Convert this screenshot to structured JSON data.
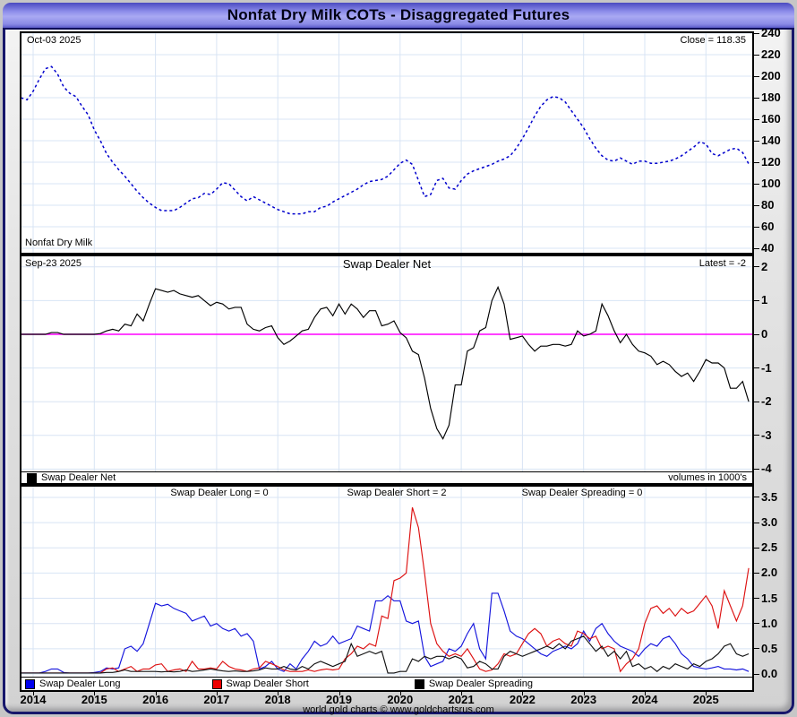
{
  "window": {
    "title": "Nonfat Dry Milk COTs - Disaggregated Futures"
  },
  "top_panel": {
    "date_label": "Oct-03 2025",
    "close_label": "Close = 118.35",
    "series_label": "Nonfat Dry Milk"
  },
  "middle_panel": {
    "date_label": "Sep-23 2025",
    "title": "Swap Dealer Net",
    "latest_label": "Latest = -2",
    "legend_label": "Swap Dealer Net",
    "volumes_label": "volumes in 1000's"
  },
  "bottom_panel": {
    "long_header": "Swap Dealer Long = 0",
    "short_header": "Swap Dealer Short = 2",
    "spreading_header": "Swap Dealer Spreading = 0",
    "legend": [
      {
        "label": "Swap Dealer Long",
        "color": "#0000ee"
      },
      {
        "label": "Swap Dealer Short",
        "color": "#ee0000"
      },
      {
        "label": "Swap Dealer Spreading",
        "color": "#000000"
      }
    ]
  },
  "x_axis": {
    "years": [
      "2014",
      "2015",
      "2016",
      "2017",
      "2018",
      "2019",
      "2020",
      "2021",
      "2022",
      "2023",
      "2024",
      "2025"
    ]
  },
  "footer": "world gold charts © www.goldchartsrus.com",
  "colors": {
    "grid": "#d8e4f4",
    "zero_line": "#ff00ff",
    "price_line": "#0000cd",
    "net_line": "#000000",
    "long_line": "#1515dd",
    "short_line": "#dd1111",
    "spreading_line": "#111111"
  },
  "chart_data": [
    {
      "type": "line",
      "panel": "price",
      "title": "Nonfat Dry Milk",
      "xlabel": "",
      "ylabel": "",
      "xlim": [
        2013.8,
        2025.8
      ],
      "ylim": [
        40,
        240
      ],
      "y_ticks": [
        "240",
        "220",
        "200",
        "180",
        "160",
        "140",
        "120",
        "100",
        "80",
        "60",
        "40"
      ],
      "y_tick_values": [
        240,
        220,
        200,
        180,
        160,
        140,
        120,
        100,
        80,
        60,
        40
      ],
      "grid": true,
      "series": [
        {
          "name": "Nonfat Dry Milk",
          "color": "#0000cd",
          "style": "dashed",
          "x_start": 2013.8,
          "x_step": 0.1,
          "values": [
            180,
            178,
            186,
            197,
            207,
            209,
            202,
            190,
            184,
            181,
            172,
            164,
            150,
            140,
            128,
            120,
            113,
            107,
            100,
            93,
            87,
            82,
            78,
            75,
            75,
            75,
            78,
            82,
            86,
            87,
            91,
            90,
            95,
            101,
            100,
            94,
            88,
            84,
            88,
            85,
            82,
            79,
            76,
            74,
            72,
            72,
            72,
            74,
            74,
            78,
            79,
            83,
            86,
            89,
            92,
            95,
            99,
            102,
            103,
            104,
            107,
            113,
            119,
            122,
            118,
            103,
            88,
            90,
            103,
            105,
            96,
            95,
            103,
            109,
            112,
            114,
            116,
            118,
            121,
            123,
            126,
            133,
            142,
            152,
            163,
            172,
            178,
            181,
            180,
            176,
            168,
            160,
            152,
            142,
            133,
            126,
            122,
            121,
            124,
            121,
            118,
            121,
            121,
            119,
            119,
            120,
            121,
            123,
            126,
            130,
            134,
            139,
            137,
            128,
            126,
            129,
            132,
            133,
            129,
            118.4
          ]
        }
      ]
    },
    {
      "type": "line",
      "panel": "net",
      "title": "Swap Dealer Net",
      "xlim": [
        2013.8,
        2025.8
      ],
      "ylim": [
        -4.4,
        2.4
      ],
      "y_ticks": [
        "2",
        "1",
        "0",
        "-1",
        "-2",
        "-3",
        "-4"
      ],
      "y_tick_values": [
        2,
        1,
        0,
        -1,
        -2,
        -3,
        -4
      ],
      "zero_line": 0,
      "grid": true,
      "series": [
        {
          "name": "Swap Dealer Net",
          "color": "#000000",
          "style": "solid",
          "x_start": 2013.8,
          "x_step": 0.1,
          "values": [
            0,
            0,
            0,
            0,
            0,
            0.05,
            0.05,
            0,
            0,
            0,
            0,
            0,
            0,
            0.02,
            0.1,
            0.15,
            0.1,
            0.3,
            0.25,
            0.6,
            0.4,
            0.9,
            1.35,
            1.3,
            1.25,
            1.3,
            1.2,
            1.15,
            1.1,
            1.15,
            1.0,
            0.85,
            0.95,
            0.9,
            0.75,
            0.8,
            0.8,
            0.3,
            0.15,
            0.1,
            0.2,
            0.25,
            -0.1,
            -0.3,
            -0.2,
            -0.05,
            0.1,
            0.15,
            0.5,
            0.75,
            0.8,
            0.55,
            0.9,
            0.6,
            0.9,
            0.75,
            0.5,
            0.7,
            0.7,
            0.25,
            0.3,
            0.4,
            0.05,
            -0.1,
            -0.5,
            -0.6,
            -1.3,
            -2.2,
            -2.8,
            -3.1,
            -2.7,
            -1.5,
            -1.5,
            -0.5,
            -0.4,
            0.1,
            0.2,
            1.0,
            1.4,
            0.9,
            -0.15,
            -0.1,
            -0.05,
            -0.3,
            -0.5,
            -0.35,
            -0.35,
            -0.3,
            -0.3,
            -0.35,
            -0.3,
            0.1,
            -0.05,
            0,
            0.1,
            0.9,
            0.55,
            0.1,
            -0.25,
            0,
            -0.3,
            -0.5,
            -0.55,
            -0.65,
            -0.9,
            -0.8,
            -0.9,
            -1.1,
            -1.25,
            -1.15,
            -1.4,
            -1.1,
            -0.75,
            -0.85,
            -0.85,
            -1.0,
            -1.6,
            -1.6,
            -1.4,
            -2.0
          ]
        }
      ]
    },
    {
      "type": "line",
      "panel": "volumes",
      "title": "volumes in 1000's",
      "xlim": [
        2013.8,
        2025.8
      ],
      "ylim": [
        0,
        3.7
      ],
      "y_ticks": [
        "3.5",
        "3.0",
        "2.5",
        "2.0",
        "1.5",
        "1.0",
        "0.5",
        "0.0"
      ],
      "y_tick_values": [
        3.5,
        3.0,
        2.5,
        2.0,
        1.5,
        1.0,
        0.5,
        0.0
      ],
      "grid": true,
      "series": [
        {
          "name": "Swap Dealer Long",
          "color": "#1515dd",
          "style": "solid",
          "x_start": 2013.8,
          "x_step": 0.1,
          "values": [
            0.02,
            0.02,
            0.02,
            0.02,
            0.05,
            0.1,
            0.1,
            0.03,
            0.02,
            0.02,
            0.02,
            0.02,
            0.03,
            0.05,
            0.12,
            0.1,
            0.12,
            0.5,
            0.55,
            0.45,
            0.6,
            1.0,
            1.4,
            1.35,
            1.38,
            1.3,
            1.25,
            1.2,
            1.05,
            1.1,
            1.15,
            0.95,
            1.0,
            0.9,
            0.85,
            0.9,
            0.75,
            0.8,
            0.65,
            0.1,
            0.15,
            0.25,
            0.1,
            0.05,
            0.2,
            0.1,
            0.3,
            0.45,
            0.65,
            0.55,
            0.6,
            0.75,
            0.6,
            0.65,
            0.7,
            0.95,
            0.9,
            0.85,
            1.45,
            1.45,
            1.55,
            1.45,
            1.45,
            1.05,
            1.0,
            1.05,
            0.35,
            0.15,
            0.2,
            0.25,
            0.5,
            0.45,
            0.55,
            0.8,
            1.0,
            0.5,
            0.3,
            1.6,
            1.6,
            1.25,
            0.85,
            0.75,
            0.7,
            0.6,
            0.5,
            0.4,
            0.35,
            0.45,
            0.5,
            0.55,
            0.5,
            0.6,
            0.85,
            0.65,
            0.9,
            1.0,
            0.8,
            0.65,
            0.55,
            0.5,
            0.45,
            0.35,
            0.5,
            0.6,
            0.55,
            0.7,
            0.75,
            0.6,
            0.4,
            0.3,
            0.15,
            0.12,
            0.1,
            0.12,
            0.15,
            0.1,
            0.1,
            0.08,
            0.1,
            0.05
          ]
        },
        {
          "name": "Swap Dealer Short",
          "color": "#dd1111",
          "style": "solid",
          "x_start": 2013.8,
          "x_step": 0.1,
          "values": [
            0.02,
            0.02,
            0.02,
            0.02,
            0.02,
            0.02,
            0.02,
            0.02,
            0.02,
            0.02,
            0.02,
            0.02,
            0.02,
            0.02,
            0.1,
            0.12,
            0.05,
            0.1,
            0.15,
            0.05,
            0.1,
            0.1,
            0.18,
            0.2,
            0.05,
            0.08,
            0.1,
            0.05,
            0.25,
            0.1,
            0.1,
            0.12,
            0.1,
            0.25,
            0.15,
            0.1,
            0.08,
            0.05,
            0.1,
            0.12,
            0.25,
            0.2,
            0.15,
            0.08,
            0.05,
            0.05,
            0.05,
            0.08,
            0.05,
            0.08,
            0.1,
            0.08,
            0.1,
            0.3,
            0.4,
            0.55,
            0.5,
            0.6,
            0.55,
            1.15,
            1.1,
            1.85,
            1.9,
            2.0,
            3.3,
            2.9,
            2.0,
            1.0,
            0.6,
            0.45,
            0.35,
            0.4,
            0.35,
            0.5,
            0.3,
            0.1,
            0.05,
            0.08,
            0.2,
            0.4,
            0.35,
            0.4,
            0.6,
            0.8,
            0.9,
            0.8,
            0.55,
            0.65,
            0.7,
            0.6,
            0.55,
            0.85,
            0.8,
            0.7,
            0.75,
            0.5,
            0.55,
            0.5,
            0.05,
            0.2,
            0.3,
            0.5,
            1.0,
            1.3,
            1.35,
            1.2,
            1.3,
            1.15,
            1.3,
            1.2,
            1.25,
            1.4,
            1.55,
            1.35,
            0.9,
            1.65,
            1.35,
            1.05,
            1.35,
            2.1
          ]
        },
        {
          "name": "Swap Dealer Spreading",
          "color": "#111111",
          "style": "solid",
          "x_start": 2013.8,
          "x_step": 0.1,
          "values": [
            0.02,
            0.02,
            0.02,
            0.02,
            0.02,
            0.02,
            0.02,
            0.02,
            0.02,
            0.02,
            0.02,
            0.02,
            0.02,
            0.02,
            0.03,
            0.03,
            0.05,
            0.08,
            0.05,
            0.05,
            0.05,
            0.05,
            0.05,
            0.04,
            0.05,
            0.04,
            0.05,
            0.08,
            0.05,
            0.06,
            0.08,
            0.1,
            0.08,
            0.06,
            0.05,
            0.06,
            0.05,
            0.05,
            0.06,
            0.08,
            0.12,
            0.1,
            0.1,
            0.15,
            0.1,
            0.08,
            0.15,
            0.1,
            0.2,
            0.25,
            0.2,
            0.15,
            0.2,
            0.25,
            0.6,
            0.35,
            0.4,
            0.45,
            0.4,
            0.45,
            0.02,
            0.02,
            0.05,
            0.05,
            0.3,
            0.25,
            0.35,
            0.3,
            0.35,
            0.35,
            0.3,
            0.35,
            0.3,
            0.12,
            0.15,
            0.25,
            0.2,
            0.1,
            0.1,
            0.35,
            0.45,
            0.4,
            0.35,
            0.4,
            0.45,
            0.5,
            0.55,
            0.5,
            0.6,
            0.5,
            0.65,
            0.7,
            0.75,
            0.6,
            0.45,
            0.55,
            0.35,
            0.45,
            0.3,
            0.45,
            0.15,
            0.2,
            0.1,
            0.15,
            0.05,
            0.15,
            0.1,
            0.2,
            0.15,
            0.1,
            0.2,
            0.15,
            0.25,
            0.3,
            0.4,
            0.55,
            0.6,
            0.4,
            0.35,
            0.4
          ]
        }
      ]
    }
  ]
}
